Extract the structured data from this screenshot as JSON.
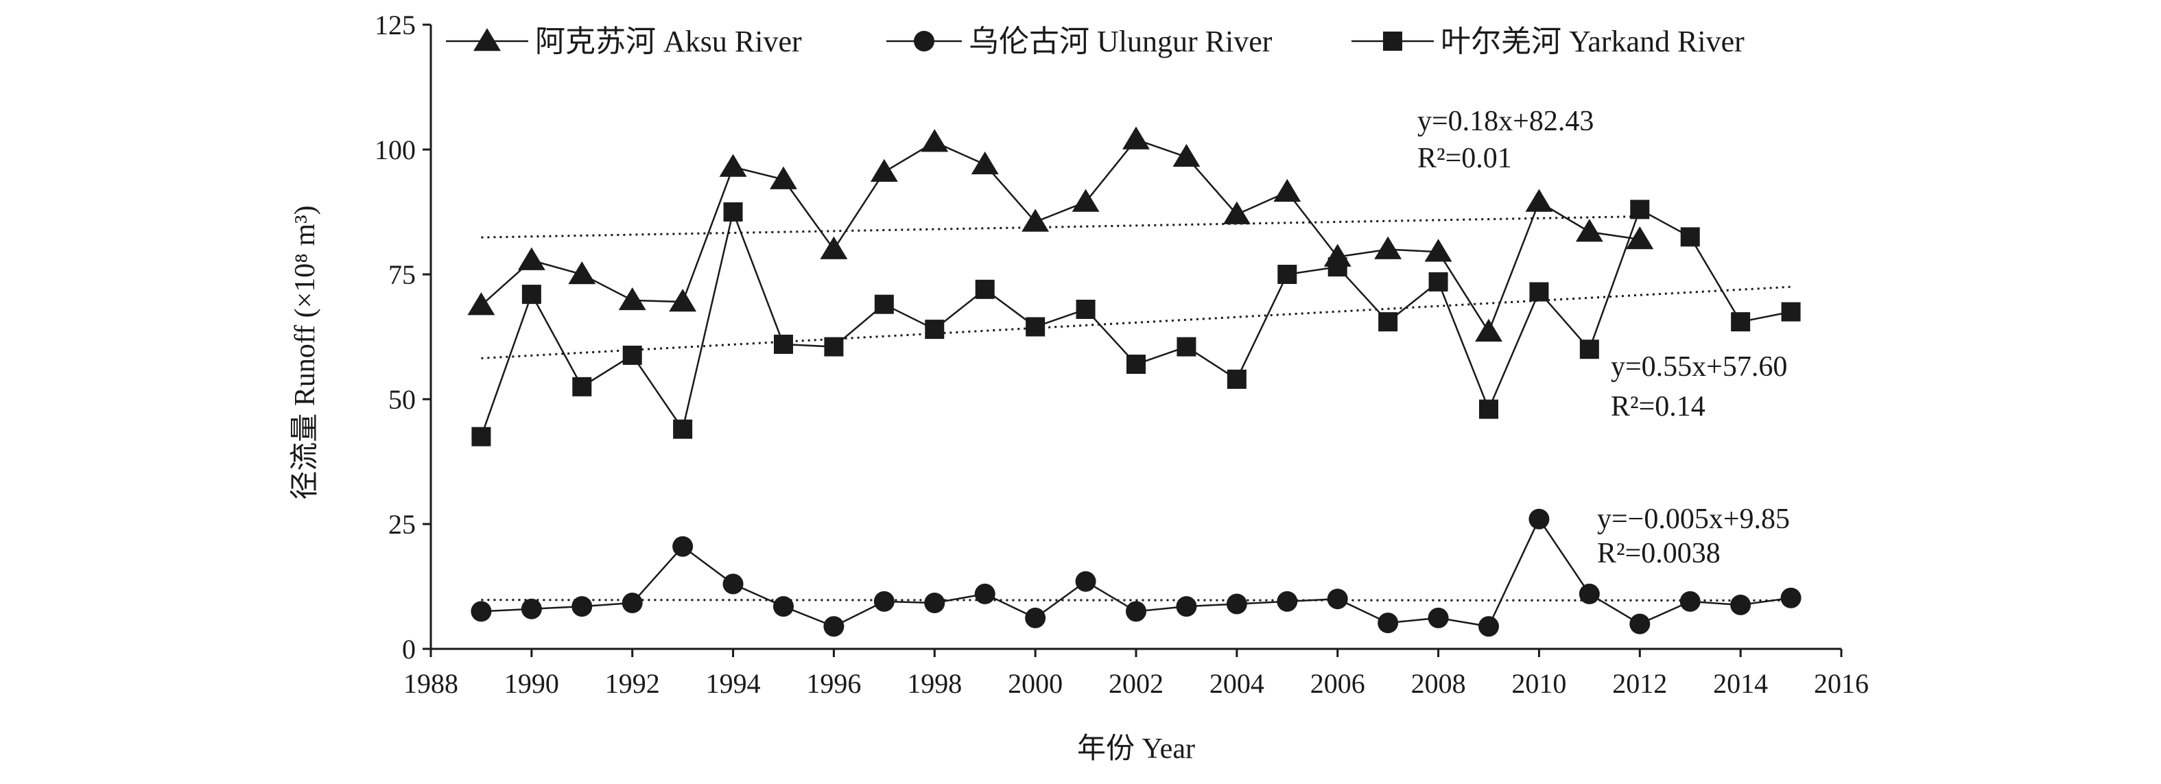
{
  "chart_data": {
    "type": "line",
    "title": "",
    "xlabel": "年份 Year",
    "ylabel": "径流量 Runoff (×10⁸ m³)",
    "xlim": [
      1988,
      2016
    ],
    "ylim": [
      0,
      125
    ],
    "x_ticks": [
      1988,
      1990,
      1992,
      1994,
      1996,
      1998,
      2000,
      2002,
      2004,
      2006,
      2008,
      2010,
      2012,
      2014,
      2016
    ],
    "y_ticks": [
      0,
      25,
      50,
      75,
      100,
      125
    ],
    "grid": false,
    "legend_position": "top",
    "x": [
      1989,
      1990,
      1991,
      1992,
      1993,
      1994,
      1995,
      1996,
      1997,
      1998,
      1999,
      2000,
      2001,
      2002,
      2003,
      2004,
      2005,
      2006,
      2007,
      2008,
      2009,
      2010,
      2011,
      2012,
      2013,
      2014,
      2015
    ],
    "series": [
      {
        "name": "阿克苏河 Aksu River",
        "marker": "triangle",
        "x": [
          1989,
          1990,
          1991,
          1992,
          1993,
          1994,
          1995,
          1996,
          1997,
          1998,
          1999,
          2000,
          2001,
          2002,
          2003,
          2004,
          2005,
          2006,
          2007,
          2008,
          2009,
          2010,
          2011,
          2012
        ],
        "values": [
          68.8,
          77.8,
          75.0,
          69.8,
          69.5,
          96.5,
          94.0,
          80.0,
          95.5,
          101.5,
          97.0,
          85.5,
          89.5,
          102.0,
          98.5,
          87.0,
          91.5,
          78.5,
          80.0,
          79.5,
          63.5,
          89.5,
          83.5,
          82.0
        ],
        "trend": {
          "equation": "y=0.18x+82.43",
          "r2": "R²=0.01",
          "start": [
            1989,
            82.4
          ],
          "end": [
            2012,
            86.6
          ]
        }
      },
      {
        "name": "乌伦古河 Ulungur River",
        "marker": "circle",
        "x": [
          1989,
          1990,
          1991,
          1992,
          1993,
          1994,
          1995,
          1996,
          1997,
          1998,
          1999,
          2000,
          2001,
          2002,
          2003,
          2004,
          2005,
          2006,
          2007,
          2008,
          2009,
          2010,
          2011,
          2012,
          2013,
          2014,
          2015
        ],
        "values": [
          7.5,
          8.0,
          8.5,
          9.2,
          20.5,
          13.0,
          8.5,
          4.5,
          9.5,
          9.2,
          11.0,
          6.2,
          13.5,
          7.5,
          8.5,
          9.0,
          9.5,
          10.0,
          5.2,
          6.2,
          4.5,
          26.0,
          11.0,
          5.0,
          9.5,
          8.8,
          10.2
        ],
        "trend": {
          "equation": "y=−0.005x+9.85",
          "r2": "R²=0.0038",
          "start": [
            1989,
            9.8
          ],
          "end": [
            2015,
            9.7
          ]
        }
      },
      {
        "name": "叶尔羌河 Yarkand River",
        "marker": "square",
        "x": [
          1989,
          1990,
          1991,
          1992,
          1993,
          1994,
          1995,
          1996,
          1997,
          1998,
          1999,
          2000,
          2001,
          2002,
          2003,
          2004,
          2005,
          2006,
          2007,
          2008,
          2009,
          2010,
          2011,
          2012,
          2013,
          2014,
          2015
        ],
        "values": [
          42.5,
          71.0,
          52.5,
          58.8,
          44.0,
          87.5,
          61.0,
          60.5,
          69.0,
          64.0,
          72.0,
          64.5,
          68.0,
          57.0,
          60.5,
          54.0,
          75.0,
          76.5,
          65.5,
          73.5,
          48.0,
          71.5,
          60.0,
          88.0,
          82.5,
          65.5,
          67.5
        ],
        "trend": {
          "equation": "y=0.55x+57.60",
          "r2": "R²=0.14",
          "start": [
            1989,
            58.2
          ],
          "end": [
            2015,
            72.5
          ]
        }
      }
    ]
  }
}
